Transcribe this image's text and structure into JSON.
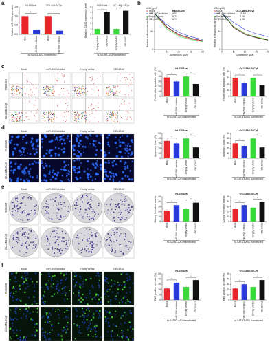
{
  "panels": [
    "a",
    "b",
    "c",
    "d",
    "e",
    "f"
  ],
  "groups": [
    "Mock",
    "miR-590 inhibitor",
    "Empty Vector",
    "OE-OAS2"
  ],
  "cell_lines": [
    "HL60/Ara",
    "OCI-AML3/Cyt"
  ],
  "significance": "*",
  "chart_data": [
    {
      "type": "bar",
      "ylabel": "Relative miR-590 expression",
      "categories": [
        "Mock",
        "miR-590 inhibitor",
        "Mock",
        "miR-590 inhibitor"
      ],
      "group_labels": [
        "HL60/Ara",
        "OCI-AML3/Cyt"
      ],
      "values": [
        1.0,
        0.25,
        1.0,
        0.2
      ],
      "colors": [
        "#e8262a",
        "#2b3bd8",
        "#e8262a",
        "#2b3bd8"
      ],
      "ylim": [
        0,
        1.5
      ],
      "yticks": [
        {
          "value": 0,
          "label": "0.0"
        },
        {
          "value": 0.5,
          "label": "0.5"
        },
        {
          "value": 1,
          "label": "1.0"
        },
        {
          "value": 1.5,
          "label": "1.5"
        }
      ],
      "xlabel": "si-SATB1-AS1 transfected"
    },
    {
      "type": "bar",
      "ylabel": "Relative OAS2 expression level",
      "categories": [
        "Empty Vector",
        "OE-OAS2",
        "Empty Vector",
        "OE-OAS2"
      ],
      "group_labels": [
        "HL60/Ara",
        "OCI-AML3/Cyt"
      ],
      "values": [
        1.0,
        4.0,
        1.0,
        4.3
      ],
      "colors": [
        "#3cd93c",
        "#111111",
        "#3cd93c",
        "#111111"
      ],
      "ylim": [
        0,
        5
      ],
      "yticks": [
        0,
        1,
        2,
        3,
        4,
        5
      ],
      "xlabel": "si-SATB1-AS1 transfected"
    },
    {
      "type": "line",
      "title": "HL60/Ara",
      "legend_title": "IC50 (μM)",
      "xlabel": "Adriamycin (μM)",
      "ylabel": "Relative cell survival rate (%)",
      "x": [
        0,
        2.5,
        5,
        10,
        15,
        20
      ],
      "xlim": [
        0,
        20
      ],
      "xticks": [
        0,
        5,
        10,
        15,
        20
      ],
      "ylim": [
        0,
        100
      ],
      "yticks": [
        0,
        50,
        100
      ],
      "series": [
        {
          "name": "Mock",
          "ic50": 6.89,
          "color": "#e8262a",
          "values": [
            100,
            82,
            62,
            40,
            30,
            24
          ]
        },
        {
          "name": "miR-590 inhibitor",
          "ic50": 8.57,
          "color": "#2b3bd8",
          "values": [
            100,
            86,
            70,
            48,
            36,
            28
          ]
        },
        {
          "name": "Empty Vector",
          "ic50": 5.72,
          "color": "#3cd93c",
          "values": [
            100,
            80,
            58,
            37,
            28,
            22
          ]
        },
        {
          "name": "OE-OAS2",
          "ic50": 6.79,
          "color": "#111111",
          "values": [
            100,
            84,
            64,
            42,
            32,
            25
          ]
        }
      ]
    },
    {
      "type": "line",
      "title": "OCI-AML3/Cyt",
      "legend_title": "IC50 (μM)",
      "xlabel": "Cytarabine (μM)",
      "ylabel": "Relative cell survival rate (%)",
      "x": [
        0,
        2.5,
        5,
        10,
        15,
        20
      ],
      "xlim": [
        0,
        20
      ],
      "xticks": [
        0,
        5,
        10,
        15,
        20
      ],
      "ylim": [
        0,
        100
      ],
      "yticks": [
        0,
        50,
        100
      ],
      "series": [
        {
          "name": "Mock",
          "ic50": 7.16,
          "color": "#e8262a",
          "values": [
            100,
            84,
            64,
            44,
            34,
            27
          ]
        },
        {
          "name": "miR-590 inhibitor",
          "ic50": 11.54,
          "color": "#2b3bd8",
          "values": [
            100,
            90,
            76,
            56,
            44,
            36
          ]
        },
        {
          "name": "Empty Vector",
          "ic50": 7.55,
          "color": "#3cd93c",
          "values": [
            100,
            85,
            65,
            45,
            35,
            28
          ]
        },
        {
          "name": "OE-OAS2",
          "ic50": 6.76,
          "color": "#111111",
          "values": [
            100,
            83,
            62,
            42,
            33,
            26
          ]
        }
      ]
    },
    {
      "type": "bar",
      "title": "HL60/Ara",
      "ylabel": "Proliferative apoptotic cells (%)",
      "categories": [
        "Mock",
        "miR-590 inhibitor",
        "Empty Vector",
        "OE-OAS2"
      ],
      "values": [
        38,
        30,
        40,
        25
      ],
      "colors": [
        "#e8262a",
        "#2b3bd8",
        "#3cd93c",
        "#111111"
      ],
      "ylim": [
        0,
        50
      ],
      "yticks": [
        0,
        10,
        20,
        30,
        40,
        50
      ],
      "xlabel": "si-SATB1-AS1 transfected"
    },
    {
      "type": "bar",
      "title": "OCI-AML3/Cyt",
      "ylabel": "Proliferative apoptotic cells (%)",
      "categories": [
        "Mock",
        "miR-590 inhibitor",
        "Empty Vector",
        "OE-OAS2"
      ],
      "values": [
        30,
        22,
        30,
        18
      ],
      "colors": [
        "#e8262a",
        "#2b3bd8",
        "#3cd93c",
        "#111111"
      ],
      "ylim": [
        0,
        40
      ],
      "yticks": [
        0,
        10,
        20,
        30,
        40
      ],
      "xlabel": "si-SATB1-AS1 transfected"
    },
    {
      "type": "bar",
      "title": "HL60/Ara",
      "ylabel": "Apoptosis index (%)",
      "categories": [
        "Mock",
        "miR-590 inhibitor",
        "Empty Vector",
        "OE-OAS2"
      ],
      "values": [
        35,
        30,
        40,
        22
      ],
      "colors": [
        "#e8262a",
        "#2b3bd8",
        "#3cd93c",
        "#111111"
      ],
      "ylim": [
        0,
        50
      ],
      "yticks": [
        0,
        10,
        20,
        30,
        40,
        50
      ],
      "xlabel": "si-SATB1-AS1 transfected"
    },
    {
      "type": "bar",
      "title": "OCI-AML3/Cyt",
      "ylabel": "Apoptosis index (%)",
      "categories": [
        "Mock",
        "miR-590 inhibitor",
        "Empty Vector",
        "OE-OAS2"
      ],
      "values": [
        30,
        25,
        40,
        22
      ],
      "colors": [
        "#e8262a",
        "#2b3bd8",
        "#3cd93c",
        "#111111"
      ],
      "ylim": [
        0,
        50
      ],
      "yticks": [
        0,
        10,
        20,
        30,
        40,
        50
      ],
      "xlabel": "si-SATB1-AS1 transfected"
    },
    {
      "type": "bar",
      "title": "HL60/Ara",
      "ylabel": "Colony formation counts",
      "categories": [
        "Mock",
        "miR-590 inhibitor",
        "Empty Vector",
        "OE-OAS2"
      ],
      "values": [
        22,
        33,
        25,
        38
      ],
      "colors": [
        "#e8262a",
        "#2b3bd8",
        "#3cd93c",
        "#111111"
      ],
      "ylim": [
        0,
        50
      ],
      "yticks": [
        0,
        10,
        20,
        30,
        40,
        50
      ],
      "xlabel": "si-SATB1-AS1 transfected"
    },
    {
      "type": "bar",
      "title": "OCI-AML3/Cyt",
      "ylabel": "Colony formation counts",
      "categories": [
        "Mock",
        "miR-590 inhibitor",
        "Empty Vector",
        "OE-OAS2"
      ],
      "values": [
        25,
        33,
        28,
        40
      ],
      "colors": [
        "#e8262a",
        "#2b3bd8",
        "#3cd93c",
        "#111111"
      ],
      "ylim": [
        0,
        50
      ],
      "yticks": [
        0,
        10,
        20,
        30,
        40,
        50
      ],
      "xlabel": "si-SATB1-AS1 transfected"
    },
    {
      "type": "bar",
      "title": "HL60/Ara",
      "ylabel": "EdU positive cell rate (%)",
      "categories": [
        "Mock",
        "miR-590 inhibitor",
        "Empty Vector",
        "OE-OAS2"
      ],
      "values": [
        22,
        33,
        25,
        38
      ],
      "colors": [
        "#e8262a",
        "#2b3bd8",
        "#3cd93c",
        "#111111"
      ],
      "ylim": [
        0,
        50
      ],
      "yticks": [
        0,
        10,
        20,
        30,
        40,
        50
      ],
      "xlabel": "si-SATB1-AS1 transfected"
    },
    {
      "type": "bar",
      "title": "OCI-AML3/Cyt",
      "ylabel": "EdU positive cell rate (%)",
      "categories": [
        "Mock",
        "miR-590 inhibitor",
        "Empty Vector",
        "OE-OAS2"
      ],
      "values": [
        22,
        30,
        25,
        38
      ],
      "colors": [
        "#e8262a",
        "#2b3bd8",
        "#3cd93c",
        "#111111"
      ],
      "ylim": [
        0,
        50
      ],
      "yticks": [
        0,
        10,
        20,
        30,
        40,
        50
      ],
      "xlabel": "si-SATB1-AS1 transfected"
    }
  ]
}
